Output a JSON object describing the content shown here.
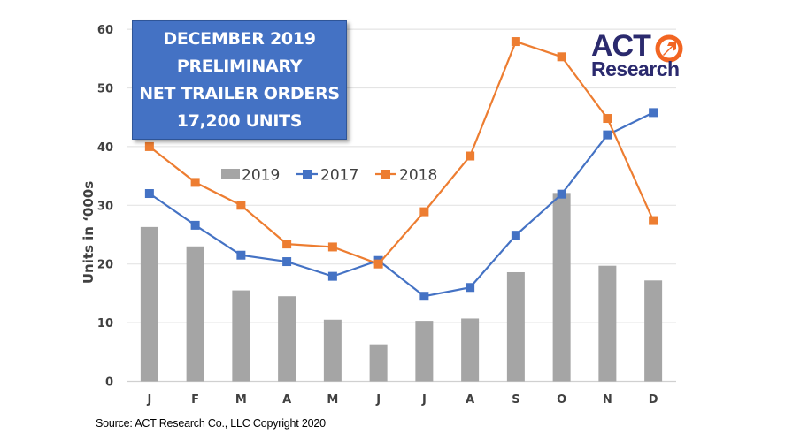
{
  "title_box": {
    "lines": [
      "DECEMBER 2019",
      "PRELIMINARY",
      "NET TRAILER ORDERS",
      "17,200 UNITS"
    ],
    "fill": "#4472C4"
  },
  "logo": {
    "top": "ACT",
    "bottom": "Research",
    "icon": "arrow-circle-icon",
    "navy": "#2B2A6E",
    "orange": "#F26522"
  },
  "source": "Source: ACT Research Co., LLC  Copyright 2020",
  "chart_data": {
    "type": "bar+line",
    "title": "DECEMBER 2019 PRELIMINARY NET TRAILER ORDERS 17,200 UNITS",
    "xlabel": "",
    "ylabel": "Units in ‘000s",
    "ylim": [
      0,
      60
    ],
    "yticks": [
      0,
      10,
      20,
      30,
      40,
      50,
      60
    ],
    "grid": true,
    "legend_position": "inside-top-center",
    "categories": [
      "J",
      "F",
      "M",
      "A",
      "M",
      "J",
      "J",
      "A",
      "S",
      "O",
      "N",
      "D"
    ],
    "series": [
      {
        "name": "2019",
        "type": "bar",
        "color": "#A5A5A5",
        "values": [
          26.3,
          23.0,
          15.5,
          14.5,
          10.5,
          6.3,
          10.3,
          10.7,
          18.6,
          32.1,
          19.7,
          17.2
        ]
      },
      {
        "name": "2017",
        "type": "line",
        "marker": "square",
        "color": "#4472C4",
        "values": [
          32.0,
          26.6,
          21.5,
          20.4,
          17.9,
          20.6,
          14.5,
          16.0,
          24.9,
          31.9,
          42.0,
          45.8
        ]
      },
      {
        "name": "2018",
        "type": "line",
        "marker": "square",
        "color": "#ED7D31",
        "values": [
          40.0,
          33.9,
          30.0,
          23.4,
          22.9,
          20.0,
          28.9,
          38.4,
          57.9,
          55.3,
          44.8,
          27.4
        ]
      }
    ]
  }
}
